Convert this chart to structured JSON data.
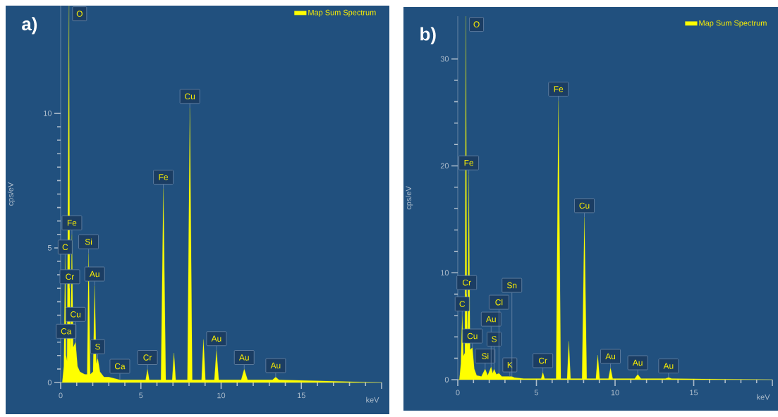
{
  "chart_data": [
    {
      "type": "area",
      "title": "**a)**",
      "xlabel": "keV",
      "ylabel": "cps/eV",
      "xlim": [
        0,
        20
      ],
      "ylim": [
        0,
        14
      ],
      "xticks": [
        0,
        5,
        10,
        15,
        {
          "value": 20,
          "label": null
        }
      ],
      "yticks": [
        0,
        5,
        10
      ],
      "legend": "top right",
      "x": [
        0,
        0.1,
        0.2,
        0.28,
        0.34,
        0.4,
        0.52,
        0.57,
        0.62,
        0.7,
        0.78,
        0.93,
        1.05,
        1.2,
        1.5,
        1.65,
        1.74,
        1.84,
        2.02,
        2.12,
        2.22,
        2.31,
        2.45,
        2.7,
        3.0,
        3.69,
        4.2,
        5.3,
        5.41,
        5.52,
        6.25,
        6.4,
        6.55,
        6.95,
        7.06,
        7.17,
        7.9,
        8.05,
        8.2,
        8.78,
        8.9,
        9.02,
        9.58,
        9.71,
        9.85,
        11.25,
        11.44,
        11.65,
        13.2,
        13.4,
        13.6,
        20
      ],
      "series": [
        {
          "name": "Map Sum Spectrum",
          "color": "#ffff00",
          "values": [
            0,
            0,
            0.6,
            4.6,
            1.0,
            0.8,
            14,
            3.5,
            1.2,
            5.5,
            1.3,
            1.5,
            0.6,
            0.4,
            0.3,
            0.3,
            4.8,
            0.3,
            0.4,
            3.6,
            0.7,
            0.9,
            0.4,
            0.2,
            0.2,
            0.1,
            0.1,
            0.1,
            0.5,
            0.1,
            0.1,
            7.2,
            0.1,
            0.1,
            1.1,
            0.1,
            0.1,
            10.2,
            0.1,
            0.1,
            1.6,
            0.1,
            0.1,
            1.2,
            0.1,
            0.1,
            0.5,
            0.1,
            0.1,
            0.2,
            0.1,
            0
          ]
        }
      ],
      "annotations": [
        {
          "text": "Ca",
          "x": 0.34,
          "y": 1.0
        },
        {
          "text": "C",
          "x": 0.28,
          "y": 4.6
        },
        {
          "text": "O",
          "x": 0.52,
          "y": 14
        },
        {
          "text": "Cr",
          "x": 0.57,
          "y": 3.5
        },
        {
          "text": "Fe",
          "x": 0.7,
          "y": 5.5
        },
        {
          "text": "Cu",
          "x": 0.93,
          "y": 1.5
        },
        {
          "text": "Si",
          "x": 1.74,
          "y": 4.8
        },
        {
          "text": "Au",
          "x": 2.12,
          "y": 3.6
        },
        {
          "text": "S",
          "x": 2.31,
          "y": 0.9
        },
        {
          "text": "Ca",
          "x": 3.69,
          "y": 0.1
        },
        {
          "text": "Cr",
          "x": 5.41,
          "y": 0.5
        },
        {
          "text": "Fe",
          "x": 6.4,
          "y": 7.2
        },
        {
          "text": "Cu",
          "x": 8.05,
          "y": 10.2
        },
        {
          "text": "Au",
          "x": 9.71,
          "y": 1.2
        },
        {
          "text": "Au",
          "x": 11.44,
          "y": 0.5
        },
        {
          "text": "Au",
          "x": 13.4,
          "y": 0.2
        }
      ]
    },
    {
      "type": "area",
      "title": "**b)**",
      "xlabel": "keV",
      "ylabel": "cps/eV",
      "xlim": [
        0,
        20
      ],
      "ylim": [
        0,
        34
      ],
      "xticks": [
        0,
        5,
        10,
        15,
        {
          "value": 20,
          "label": null
        }
      ],
      "yticks": [
        0,
        10,
        20,
        30
      ],
      "legend": "top right",
      "x": [
        0,
        0.1,
        0.2,
        0.28,
        0.36,
        0.45,
        0.52,
        0.57,
        0.63,
        0.7,
        0.78,
        0.93,
        1.05,
        1.2,
        1.5,
        1.74,
        1.9,
        2.12,
        2.22,
        2.31,
        2.45,
        2.62,
        2.8,
        3.31,
        3.44,
        3.6,
        4.2,
        5.3,
        5.41,
        5.52,
        6.25,
        6.4,
        6.55,
        6.95,
        7.06,
        7.17,
        7.9,
        8.05,
        8.2,
        8.78,
        8.9,
        9.02,
        9.58,
        9.71,
        9.85,
        11.25,
        11.44,
        11.65,
        13.2,
        13.4,
        13.6,
        20
      ],
      "series": [
        {
          "name": "Map Sum Spectrum",
          "color": "#ffff00",
          "values": [
            0,
            0,
            1.5,
            6,
            2.2,
            2.5,
            34,
            8,
            2.8,
            19.2,
            2.8,
            3.0,
            1.0,
            0.4,
            0.3,
            1.0,
            0.4,
            1.2,
            0.6,
            1.0,
            0.5,
            0.6,
            0.3,
            0.3,
            0.3,
            0.2,
            0.1,
            0.1,
            0.7,
            0.1,
            0.1,
            26.1,
            0.1,
            0.1,
            3.6,
            0.1,
            0.1,
            15.2,
            0.1,
            0.1,
            2.3,
            0.1,
            0.1,
            1.1,
            0.1,
            0.1,
            0.5,
            0.1,
            0.1,
            0.2,
            0.1,
            0
          ]
        }
      ],
      "annotations": [
        {
          "text": "C",
          "x": 0.28,
          "y": 6
        },
        {
          "text": "O",
          "x": 0.52,
          "y": 34
        },
        {
          "text": "Cr",
          "x": 0.57,
          "y": 8
        },
        {
          "text": "Fe",
          "x": 0.7,
          "y": 19.2
        },
        {
          "text": "Cu",
          "x": 0.93,
          "y": 3.0
        },
        {
          "text": "Si",
          "x": 1.74,
          "y": 1.0
        },
        {
          "text": "Au",
          "x": 2.12,
          "y": 1.2
        },
        {
          "text": "S",
          "x": 2.31,
          "y": 1.0
        },
        {
          "text": "Cl",
          "x": 2.62,
          "y": 0.6
        },
        {
          "text": "K",
          "x": 3.31,
          "y": 0.3
        },
        {
          "text": "Sn",
          "x": 3.44,
          "y": 0.3
        },
        {
          "text": "Cr",
          "x": 5.41,
          "y": 0.7
        },
        {
          "text": "Fe",
          "x": 6.4,
          "y": 26.1
        },
        {
          "text": "Cu",
          "x": 8.05,
          "y": 15.2
        },
        {
          "text": "Au",
          "x": 9.71,
          "y": 1.1
        },
        {
          "text": "Au",
          "x": 11.44,
          "y": 0.5
        },
        {
          "text": "Au",
          "x": 13.4,
          "y": 0.2
        }
      ]
    }
  ]
}
